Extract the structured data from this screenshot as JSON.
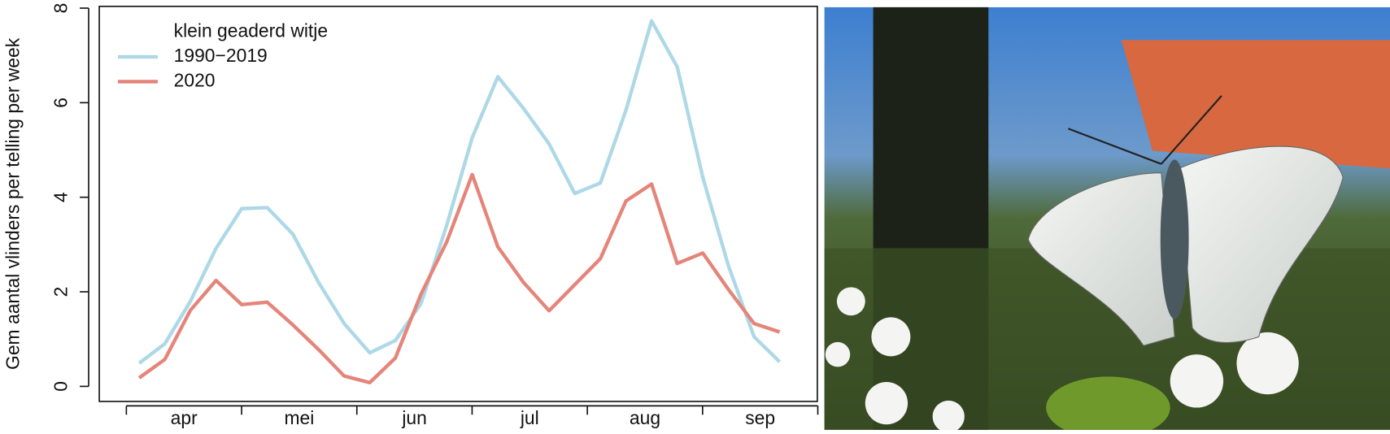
{
  "chart_data": {
    "type": "line",
    "y_label": "Gem aantal vlinders per telling per week",
    "legend_title": "klein geaderd witje",
    "categories": [
      null,
      null,
      null,
      null,
      null,
      null,
      null,
      null,
      null,
      null,
      null,
      null,
      null,
      null,
      null,
      null,
      null,
      null,
      null,
      null,
      null,
      null,
      null,
      null,
      null,
      null
    ],
    "months": [
      "apr",
      "mei",
      "jun",
      "jul",
      "aug",
      "sep"
    ],
    "series": [
      {
        "name": "1990−2019",
        "color": "#add8e6",
        "values": [
          0.49,
          0.9,
          1.8,
          2.92,
          3.76,
          3.78,
          3.22,
          2.2,
          1.33,
          0.71,
          0.97,
          1.75,
          3.4,
          5.26,
          6.55,
          5.88,
          5.13,
          4.08,
          4.3,
          5.84,
          7.73,
          6.76,
          4.42,
          2.55,
          1.05,
          0.52
        ]
      },
      {
        "name": "2020",
        "color": "#e5857a",
        "values": [
          0.18,
          0.57,
          1.61,
          2.24,
          1.73,
          1.78,
          1.3,
          0.78,
          0.22,
          0.08,
          0.6,
          1.95,
          3.05,
          4.48,
          2.95,
          2.2,
          1.6,
          2.15,
          2.7,
          3.92,
          4.28,
          2.6,
          2.82,
          2.05,
          1.33,
          1.15
        ]
      }
    ],
    "ylim": [
      0,
      8
    ],
    "yticks": [
      0,
      2,
      4,
      6,
      8
    ],
    "legend_position": "top-left"
  }
}
